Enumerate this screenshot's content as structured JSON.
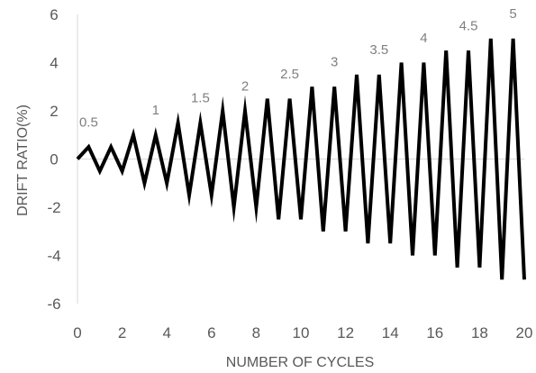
{
  "chart_data": {
    "type": "line",
    "title": "",
    "xlabel": "NUMBER OF CYCLES",
    "ylabel": "DRIFT RATIO(%)",
    "xlim": [
      0,
      20
    ],
    "ylim": [
      -6,
      6
    ],
    "xticks": [
      0,
      2,
      4,
      6,
      8,
      10,
      12,
      14,
      16,
      18,
      20
    ],
    "yticks": [
      -6,
      -4,
      -2,
      0,
      2,
      4,
      6
    ],
    "grid": false,
    "legend": "none",
    "line_color": "#000000",
    "series": [
      {
        "x": [
          0,
          0.5,
          1,
          1.5,
          2,
          2.5,
          3,
          3.5,
          4,
          4.5,
          5,
          5.5,
          6,
          6.5,
          7,
          7.5,
          8,
          8.5,
          9,
          9.5,
          10,
          10.5,
          11,
          11.5,
          12,
          12.5,
          13,
          13.5,
          14,
          14.5,
          15,
          15.5,
          16,
          16.5,
          17,
          17.5,
          18,
          18.5,
          19,
          19.5,
          20
        ],
        "values": [
          0,
          0.5,
          -0.5,
          0.5,
          -0.5,
          1,
          -1,
          1,
          -1,
          1.5,
          -1.5,
          1.5,
          -1.5,
          2,
          -2,
          2,
          -2,
          2.5,
          -2.5,
          2.5,
          -2.5,
          3,
          -3,
          3,
          -3,
          3.5,
          -3.5,
          3.5,
          -3.5,
          4,
          -4,
          4,
          -4,
          4.5,
          -4.5,
          4.5,
          -4.5,
          5,
          -5,
          5,
          -5
        ]
      }
    ],
    "annotations": [
      {
        "text": "0.5",
        "x": 0.5,
        "y": 1.5
      },
      {
        "text": "1",
        "x": 3.5,
        "y": 2.0
      },
      {
        "text": "1.5",
        "x": 5.5,
        "y": 2.5
      },
      {
        "text": "2",
        "x": 7.5,
        "y": 3.0
      },
      {
        "text": "2.5",
        "x": 9.5,
        "y": 3.5
      },
      {
        "text": "3",
        "x": 11.5,
        "y": 4.0
      },
      {
        "text": "3.5",
        "x": 13.5,
        "y": 4.5
      },
      {
        "text": "4",
        "x": 15.5,
        "y": 5.0
      },
      {
        "text": "4.5",
        "x": 17.5,
        "y": 5.5
      },
      {
        "text": "5",
        "x": 19.5,
        "y": 6.0
      }
    ]
  }
}
